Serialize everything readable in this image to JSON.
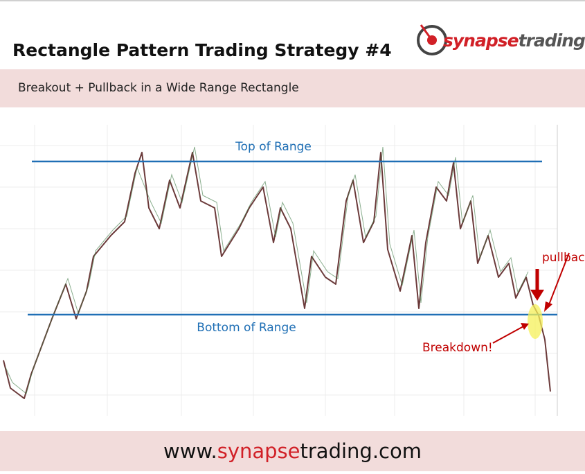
{
  "header": {
    "title": "Rectangle Pattern Trading Strategy #4",
    "subtitle": "Breakout + Pullback in a Wide Range Rectangle"
  },
  "logo": {
    "part1": "synapse",
    "part2": "trading"
  },
  "annotations": {
    "top": "Top of Range",
    "bottom": "Bottom of Range",
    "breakdown": "Breakdown!",
    "pullback": "pullback"
  },
  "footer": {
    "prefix": "www.",
    "highlight": "synapse",
    "suffix": "trading.com"
  }
}
